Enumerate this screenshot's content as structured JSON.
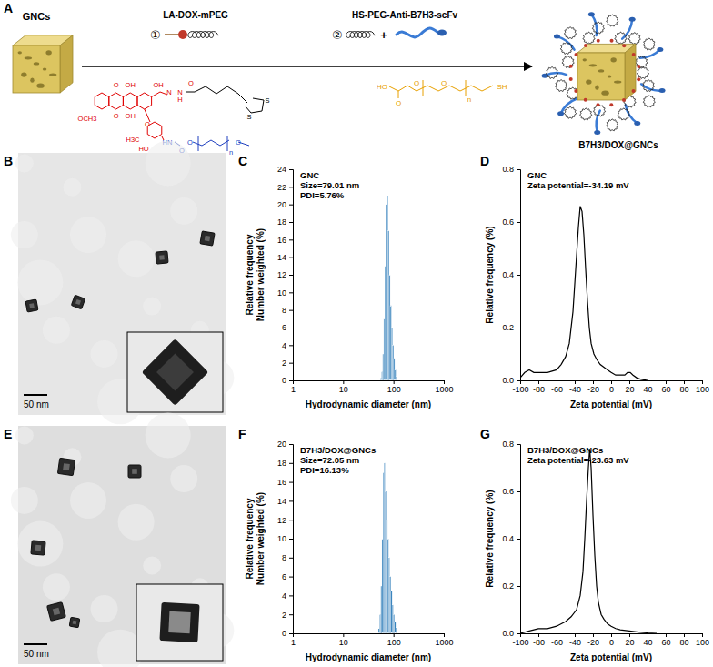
{
  "figure": {
    "panel_labels": [
      "A",
      "B",
      "C",
      "D",
      "E",
      "F",
      "G"
    ],
    "schematic": {
      "start_label": "GNCs",
      "step1_number": "①",
      "step1_label": "LA-DOX-mPEG",
      "step2_number": "②",
      "step2_label": "HS-PEG-Anti-B7H3-scFv",
      "plus": "+",
      "product_label": "B7H3/DOX@GNCs",
      "dox_atoms": [
        "O",
        "OH",
        "OCH3",
        "O",
        "OH",
        "OH",
        "N",
        "N",
        "H",
        "O",
        "O",
        "H3C",
        "HO"
      ],
      "peg_atoms": [
        "HN",
        "O",
        "O",
        "n",
        "O"
      ],
      "la_atoms": [
        "S",
        "S"
      ],
      "linker_atoms": [
        "HO",
        "O",
        "O",
        "O",
        "n",
        "SH"
      ]
    },
    "tem_images": [
      {
        "scale_bar": "50 nm"
      },
      {
        "scale_bar": "50 nm"
      }
    ]
  },
  "chart_data": [
    {
      "type": "histogram",
      "ylabel": [
        "Relative frequency",
        "Number weighted (%)"
      ],
      "xlabel": "Hydrodynamic diameter (nm)",
      "annotations": [
        "GNC",
        "Size=79.01 nm",
        "PDI=5.76%"
      ],
      "bins": [
        55,
        58,
        61,
        64,
        67,
        70,
        74,
        78,
        82,
        86,
        91,
        96,
        101,
        106,
        112,
        118
      ],
      "values": [
        0.3,
        1.0,
        3.0,
        7.0,
        13.0,
        20.0,
        21.0,
        17.0,
        12.0,
        8.5,
        6.0,
        4.0,
        2.5,
        1.2,
        0.5
      ],
      "color": "#2b7bb9",
      "log": "x",
      "xlim": [
        1,
        1000
      ],
      "xticks": [
        1,
        10,
        100,
        1000
      ],
      "ylim": [
        0,
        24
      ],
      "yticks": [
        0,
        2,
        4,
        6,
        8,
        10,
        12,
        14,
        16,
        18,
        20,
        22,
        24
      ]
    },
    {
      "type": "line",
      "ylabel": "Relative frequency (%)",
      "xlabel": "Zeta potential (mV)",
      "annotations": [
        "GNC",
        "Zeta potential=-34.19 mV"
      ],
      "x": [
        -100,
        -95,
        -90,
        -85,
        -80,
        -70,
        -60,
        -55,
        -50,
        -46,
        -42,
        -39,
        -36,
        -34,
        -32,
        -30,
        -28,
        -26,
        -24,
        -22,
        -19,
        -16,
        -12,
        -8,
        -4,
        0,
        5,
        10,
        15,
        18,
        21,
        24,
        28,
        32,
        36,
        40
      ],
      "values": [
        0.01,
        0.03,
        0.04,
        0.03,
        0.03,
        0.03,
        0.04,
        0.06,
        0.09,
        0.14,
        0.26,
        0.42,
        0.58,
        0.66,
        0.64,
        0.55,
        0.42,
        0.3,
        0.2,
        0.14,
        0.1,
        0.08,
        0.06,
        0.05,
        0.04,
        0.03,
        0.02,
        0.02,
        0.02,
        0.03,
        0.03,
        0.02,
        0.01,
        0.005,
        0.002,
        0
      ],
      "color": "#000000",
      "xlim": [
        -100,
        100
      ],
      "xticks": [
        -100,
        -80,
        -60,
        -40,
        -20,
        0,
        20,
        40,
        60,
        80,
        100
      ],
      "ylim": [
        0,
        0.8
      ],
      "yticks": [
        {
          "value": 0,
          "label": "0.0"
        },
        0.2,
        0.4,
        0.6,
        0.8
      ]
    },
    {
      "type": "histogram",
      "ylabel": [
        "Relative frequency",
        "Number weighted (%)"
      ],
      "xlabel": "Hydrodynamic diameter (nm)",
      "annotations": [
        "B7H3/DOX@GNCs",
        "Size=72.05 nm",
        "PDI=16.13%"
      ],
      "bins": [
        50,
        53,
        56,
        59,
        62,
        65,
        68,
        72,
        76,
        80,
        84,
        89,
        94,
        99,
        105,
        111,
        118
      ],
      "values": [
        0.5,
        2,
        5,
        10,
        17,
        18,
        15,
        12,
        10,
        8,
        6,
        4.5,
        3,
        2,
        1.2,
        0.6
      ],
      "color": "#2b7bb9",
      "log": "x",
      "xlim": [
        1,
        1000
      ],
      "xticks": [
        1,
        10,
        100,
        1000
      ],
      "ylim": [
        0,
        20
      ],
      "yticks": [
        0,
        2,
        4,
        6,
        8,
        10,
        12,
        14,
        16,
        18,
        20
      ]
    },
    {
      "type": "line",
      "ylabel": "Relative frequency (%)",
      "xlabel": "Zeta potential (mV)",
      "annotations": [
        "B7H3/DOX@GNCs",
        "Zeta potential=-23.63 mV"
      ],
      "x": [
        -100,
        -90,
        -80,
        -70,
        -60,
        -50,
        -44,
        -38,
        -34,
        -31,
        -29,
        -27,
        -25,
        -23.6,
        -22,
        -20,
        -18,
        -16,
        -14,
        -11,
        -8,
        -4,
        0,
        5,
        10,
        20,
        30,
        40,
        50
      ],
      "values": [
        0,
        0.01,
        0.02,
        0.02,
        0.03,
        0.05,
        0.07,
        0.1,
        0.16,
        0.26,
        0.4,
        0.56,
        0.7,
        0.78,
        0.7,
        0.5,
        0.33,
        0.2,
        0.13,
        0.08,
        0.06,
        0.04,
        0.03,
        0.02,
        0.015,
        0.01,
        0.005,
        0.002,
        0
      ],
      "color": "#000000",
      "xlim": [
        -100,
        100
      ],
      "xticks": [
        -100,
        -80,
        -60,
        -40,
        -20,
        0,
        20,
        40,
        60,
        80,
        100
      ],
      "ylim": [
        0,
        0.8
      ],
      "yticks": [
        {
          "value": 0,
          "label": "0.0"
        },
        0.2,
        0.4,
        0.6,
        0.8
      ]
    }
  ]
}
